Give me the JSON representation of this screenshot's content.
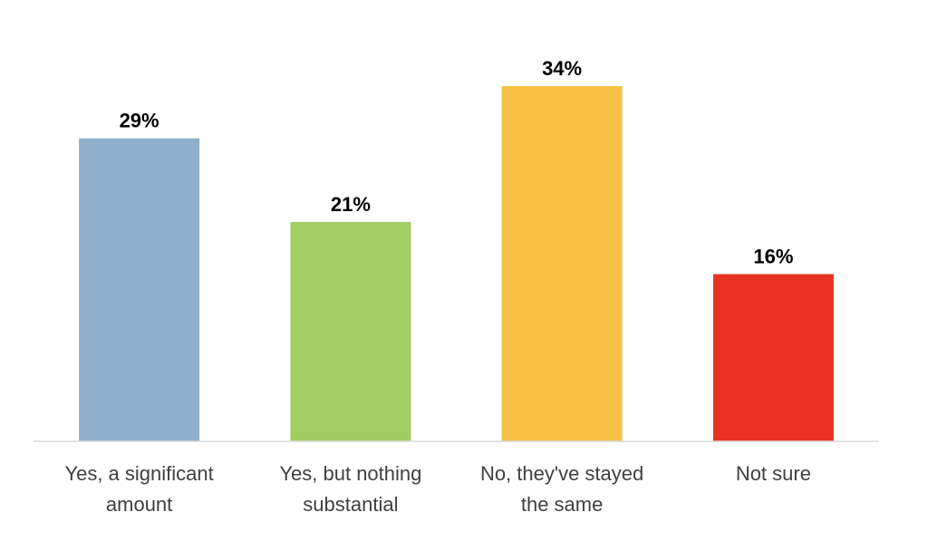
{
  "chart_data": {
    "type": "bar",
    "title": "",
    "xlabel": "",
    "ylabel": "",
    "categories": [
      [
        "Yes, a significant",
        "amount"
      ],
      [
        "Yes, but nothing",
        "substantial"
      ],
      [
        "No, they've stayed",
        "the same"
      ],
      [
        "Not sure"
      ]
    ],
    "values": [
      29,
      21,
      34,
      16
    ],
    "value_labels": [
      "29%",
      "21%",
      "34%",
      "16%"
    ],
    "colors": [
      "#8FAFCA",
      "#A2CD63",
      "#F5C044",
      "#E83323"
    ],
    "ylim": [
      0,
      40
    ],
    "grid": false,
    "legend": "none"
  }
}
